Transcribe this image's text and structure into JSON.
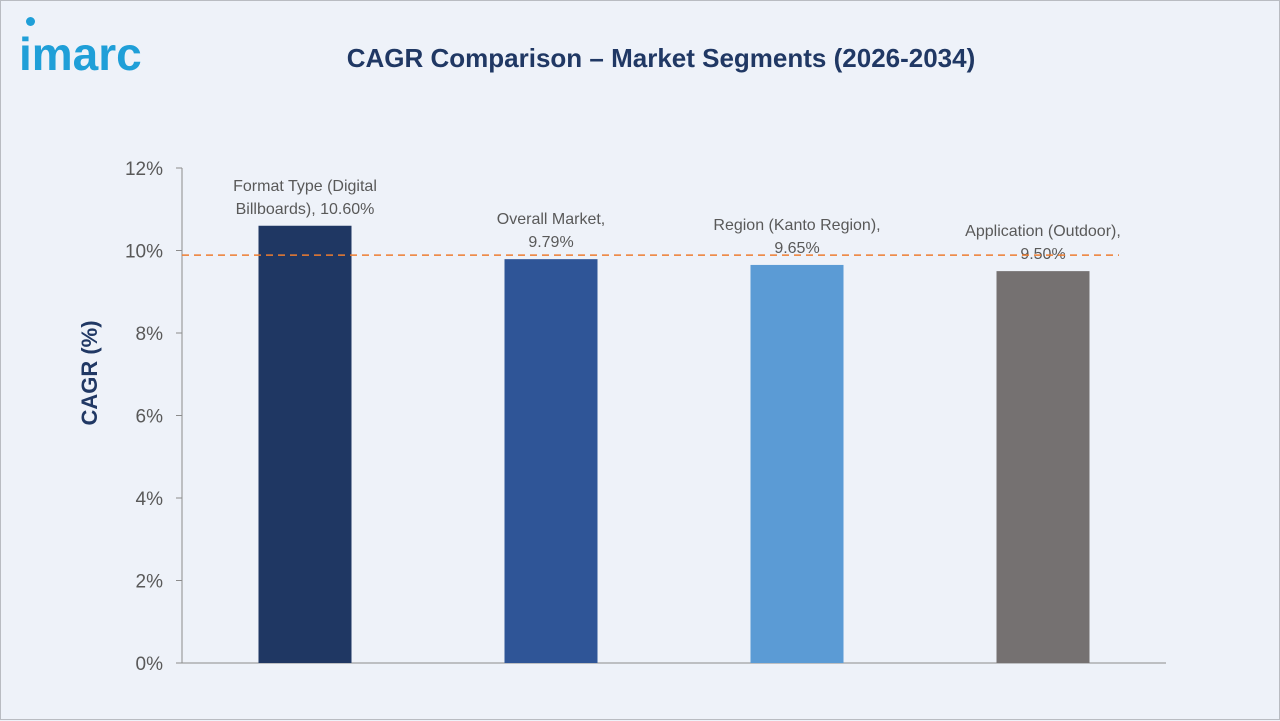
{
  "logo_text": "imarc",
  "chart_data": {
    "type": "bar",
    "title": "CAGR Comparison – Market Segments (2026-2034)",
    "ylabel": "CAGR (%)",
    "xlabel": "",
    "ylim": [
      0,
      12
    ],
    "yticks": [
      0,
      2,
      4,
      6,
      8,
      10,
      12
    ],
    "ytick_labels": [
      "0%",
      "2%",
      "4%",
      "6%",
      "8%",
      "10%",
      "12%"
    ],
    "categories": [
      "Format Type (Digital Billboards)",
      "Overall Market",
      "Region (Kanto Region)",
      "Application (Outdoor)"
    ],
    "values": [
      10.6,
      9.79,
      9.65,
      9.5
    ],
    "data_labels": [
      [
        "Format Type (Digital",
        "Billboards), 10.60%"
      ],
      [
        "Overall Market,",
        "9.79%"
      ],
      [
        "Region (Kanto Region),",
        "9.65%"
      ],
      [
        "Application (Outdoor),",
        "9.50%"
      ]
    ],
    "colors": [
      "#1f3763",
      "#2f5597",
      "#5b9bd5",
      "#757171"
    ],
    "reference_line": {
      "value": 9.79,
      "style": "dashed",
      "color": "#ed7d31"
    },
    "grid": false,
    "legend": "none"
  }
}
